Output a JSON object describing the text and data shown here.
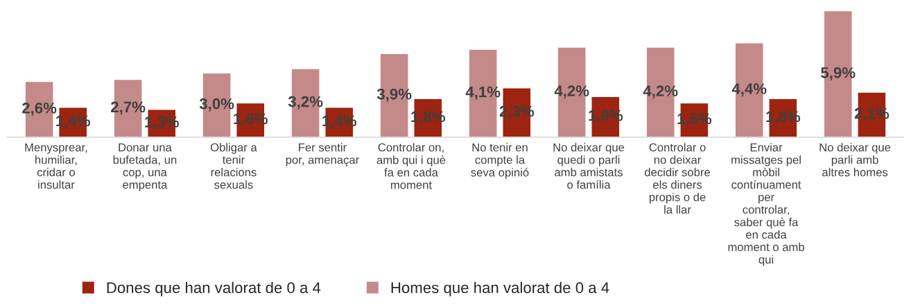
{
  "chart_data": {
    "type": "bar",
    "categories": [
      "Menysprear, humiliar, cridar o insultar",
      "Donar una bufetada, un cop, una empenta",
      "Obligar a tenir relacions sexuals",
      "Fer sentir por, amenaçar",
      "Controlar on, amb qui i què fa en cada moment",
      "No tenir en compte la seva opinió",
      "No deixar que quedi o parli amb amistats o família",
      "Controlar o no deixar decidir sobre els diners propis o de la llar",
      "Enviar missatges pel mòbil contínuament per controlar, saber què fa en cada moment o amb qui",
      "No deixar que parli amb altres homes"
    ],
    "series": [
      {
        "name": "Homes que han valorat de 0 a 4",
        "color": "#c48a89",
        "values": [
          2.6,
          2.7,
          3.0,
          3.2,
          3.9,
          4.1,
          4.2,
          4.2,
          4.4,
          5.9
        ],
        "value_labels": [
          "2,6%",
          "2,7%",
          "3,0%",
          "3,2%",
          "3,9%",
          "4,1%",
          "4,2%",
          "4,2%",
          "4,4%",
          "5,9%"
        ]
      },
      {
        "name": "Dones que han valorat de 0 a 4",
        "color": "#9c2410",
        "values": [
          1.4,
          1.3,
          1.6,
          1.4,
          1.8,
          2.3,
          1.9,
          1.6,
          1.8,
          2.1
        ],
        "value_labels": [
          "1,4%",
          "1,3%",
          "1,6%",
          "1,4%",
          "1,8%",
          "2,3%",
          "1,9%",
          "1,6%",
          "1,8%",
          "2,1%"
        ]
      }
    ],
    "legend": "bottom",
    "grid": false
  }
}
